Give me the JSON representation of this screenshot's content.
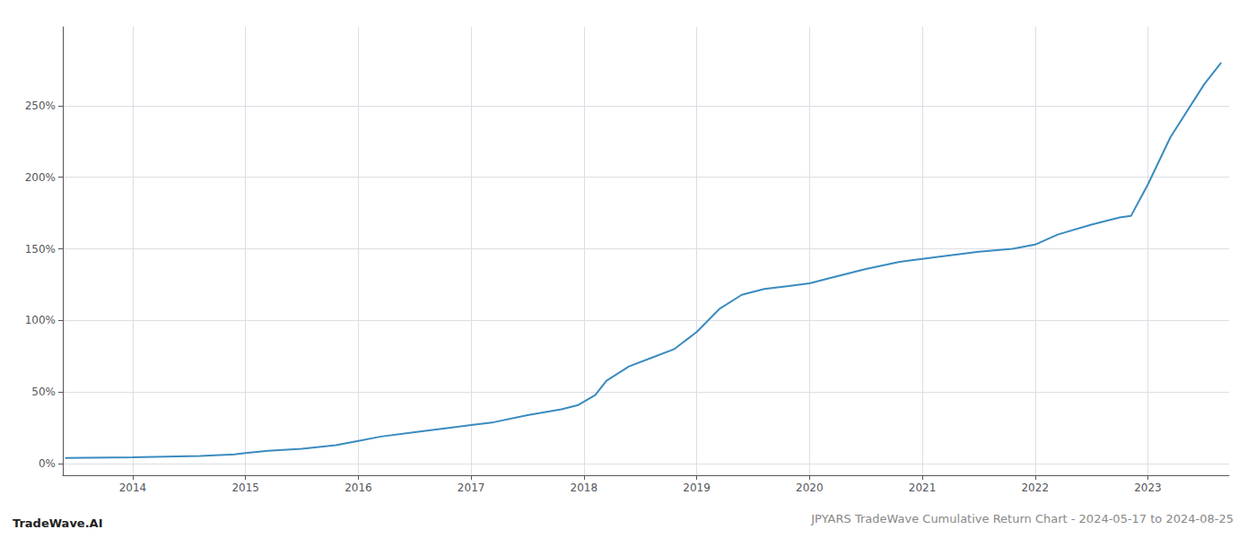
{
  "chart_data": {
    "type": "line",
    "title": "JPYARS TradeWave Cumulative Return Chart - 2024-05-17 to 2024-08-25",
    "annotations": [
      "TradeWave.AI"
    ],
    "color": "#3a8bbf",
    "grid": true,
    "x": [
      2013.4,
      2014.0,
      2014.3,
      2014.6,
      2014.9,
      2015.0,
      2015.2,
      2015.5,
      2015.8,
      2016.0,
      2016.2,
      2016.5,
      2016.8,
      2017.0,
      2017.2,
      2017.5,
      2017.8,
      2017.95,
      2018.1,
      2018.2,
      2018.4,
      2018.6,
      2018.8,
      2019.0,
      2019.1,
      2019.2,
      2019.4,
      2019.6,
      2019.8,
      2020.0,
      2020.2,
      2020.5,
      2020.8,
      2021.0,
      2021.2,
      2021.5,
      2021.8,
      2022.0,
      2022.2,
      2022.5,
      2022.75,
      2022.85,
      2023.0,
      2023.2,
      2023.5,
      2023.65
    ],
    "values": [
      4.0,
      4.5,
      5.0,
      5.5,
      6.5,
      7.5,
      9.0,
      10.5,
      13.0,
      16.0,
      19.0,
      22.0,
      25.0,
      27.0,
      29.0,
      34.0,
      38.0,
      41.0,
      48.0,
      58.0,
      68.0,
      74.0,
      80.0,
      92.0,
      100.0,
      108.0,
      118.0,
      122.0,
      124.0,
      126.0,
      130.0,
      136.0,
      141.0,
      143.0,
      145.0,
      148.0,
      150.0,
      153.0,
      160.0,
      167.0,
      172.0,
      173.0,
      195.0,
      228.0,
      265.0,
      280.0
    ],
    "xlim": [
      2013.38,
      2023.72
    ],
    "xticks": [
      2014,
      2015,
      2016,
      2017,
      2018,
      2019,
      2020,
      2021,
      2022,
      2023
    ],
    "ylim": [
      -8,
      305
    ],
    "yticks": [
      {
        "value": 0,
        "label": "0%"
      },
      {
        "value": 50,
        "label": "50%"
      },
      {
        "value": 100,
        "label": "100%"
      },
      {
        "value": 150,
        "label": "150%"
      },
      {
        "value": 200,
        "label": "200%"
      },
      {
        "value": 250,
        "label": "250%"
      }
    ]
  }
}
